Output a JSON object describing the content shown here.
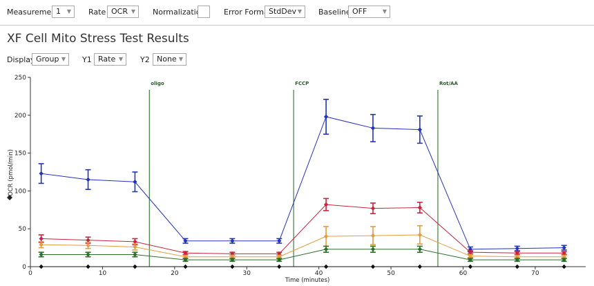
{
  "toolbar": {
    "measurement": {
      "label": "Measurement",
      "value": "1"
    },
    "rate": {
      "label": "Rate",
      "value": "OCR"
    },
    "normalization": {
      "label": "Normalization",
      "checked": false
    },
    "error_format": {
      "label": "Error Format",
      "value": "StdDev"
    },
    "baseline": {
      "label": "Baseline",
      "value": "OFF"
    }
  },
  "page_title": "XF Cell Mito Stress Test Results",
  "display_bar": {
    "display": {
      "label": "Display",
      "value": "Group"
    },
    "y1": {
      "label": "Y1",
      "value": "Rate"
    },
    "y2": {
      "label": "Y2",
      "value": "None"
    }
  },
  "chart_data": {
    "type": "line",
    "title": "",
    "xlabel": "Time (minutes)",
    "ylabel": "OCR (pmol/min)",
    "xlim": [
      0,
      77
    ],
    "ylim": [
      0,
      250
    ],
    "xticks": [
      0,
      10,
      20,
      30,
      40,
      50,
      60,
      70
    ],
    "yticks": [
      0,
      50,
      100,
      150,
      200,
      250
    ],
    "grid": false,
    "x": [
      1.5,
      8,
      14.5,
      21.5,
      28,
      34.5,
      41,
      47.5,
      54,
      61,
      67.5,
      74
    ],
    "injections": [
      {
        "label": "oligo",
        "x": 16.5
      },
      {
        "label": "FCCP",
        "x": 36.5
      },
      {
        "label": "Rot/AA",
        "x": 56.5
      }
    ],
    "series": [
      {
        "color": "#2233bb",
        "marker": "diamond",
        "values": [
          123,
          115,
          112,
          34,
          34,
          34,
          198,
          183,
          181,
          23,
          24,
          25
        ],
        "errors": [
          13,
          13,
          13,
          3,
          3,
          3,
          23,
          18,
          18,
          3,
          3,
          3
        ]
      },
      {
        "color": "#c8233c",
        "marker": "diamond",
        "values": [
          37,
          35,
          33,
          18,
          17,
          17,
          82,
          77,
          78,
          19,
          18,
          18
        ],
        "errors": [
          5,
          4,
          4,
          2,
          2,
          2,
          8,
          7,
          7,
          2,
          2,
          2
        ]
      },
      {
        "color": "#e59c3a",
        "marker": "diamond",
        "values": [
          29,
          28,
          26,
          13,
          13,
          13,
          40,
          41,
          42,
          14,
          13,
          13
        ],
        "errors": [
          4,
          4,
          4,
          2,
          2,
          2,
          13,
          12,
          12,
          2,
          2,
          2
        ]
      },
      {
        "color": "#2a6e2a",
        "marker": "diamond",
        "values": [
          16,
          16,
          16,
          9,
          9,
          9,
          23,
          23,
          23,
          9,
          9,
          9
        ],
        "errors": [
          3,
          3,
          3,
          2,
          2,
          2,
          4,
          4,
          4,
          2,
          2,
          2
        ]
      },
      {
        "color": "#111111",
        "marker": "diamond",
        "values": [
          0,
          0,
          0,
          0,
          0,
          0,
          0,
          0,
          0,
          0,
          0,
          0
        ],
        "errors": [
          0,
          0,
          0,
          0,
          0,
          0,
          0,
          0,
          0,
          0,
          0,
          0
        ]
      }
    ]
  }
}
